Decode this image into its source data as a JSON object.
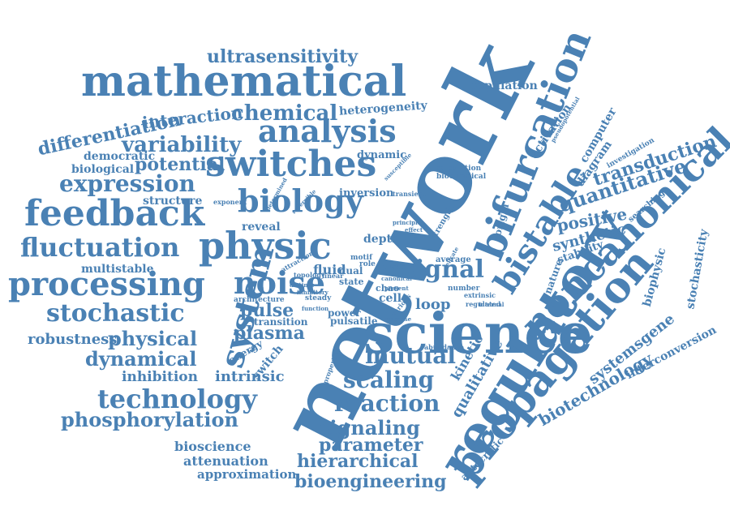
{
  "cloud": {
    "color": "#4a81b4",
    "words": [
      "network",
      "science",
      "regulatory",
      "propagation",
      "bifurcation",
      "bistable",
      "noncanonical",
      "mathematical",
      "switches",
      "physic",
      "feedback",
      "processing",
      "analysis",
      "biology",
      "fluctuation",
      "noise",
      "system",
      "stochastic",
      "signal",
      "expression",
      "variability",
      "chemical",
      "ultrasensitivity",
      "differentiation",
      "interaction",
      "potential",
      "technology",
      "reaction",
      "scaling",
      "mutual",
      "signaling",
      "parameter",
      "hierarchical",
      "bioengineering",
      "phosphorylation",
      "dynamical",
      "physical",
      "robustness",
      "inhibition",
      "intrinsic",
      "pulse",
      "plasma",
      "quantitative",
      "transduction",
      "positive",
      "synthetic",
      "biotechnology",
      "systemsgene",
      "qualitative",
      "kinetic",
      "interconversion",
      "stochasticity",
      "biophysic",
      "computer",
      "activation",
      "diagram",
      "population",
      "heterogeneity",
      "democratic",
      "biological",
      "structure",
      "multistable",
      "bioscience",
      "attenuation",
      "approximation",
      "autocratic",
      "dynamic",
      "inversion",
      "reveal",
      "depth",
      "loop",
      "cell",
      "chao",
      "power",
      "pulsatile",
      "state",
      "steady",
      "fluid",
      "dual",
      "energy",
      "switch",
      "transition",
      "architecture",
      "calculation",
      "biochemical",
      "origin",
      "nature",
      "stability",
      "searching",
      "investigation",
      "pseudopotential",
      "exponent",
      "topology",
      "linear",
      "motif",
      "role",
      "phase",
      "average",
      "strength",
      "number",
      "regulated",
      "extrinsic",
      "abundance",
      "properties",
      "transient",
      "susceptible",
      "determined",
      "reversible",
      "attraction",
      "distinct",
      "inhibitory",
      "function",
      "principle",
      "effect",
      "chain",
      "canonical",
      "present",
      "various",
      "response",
      "delicate",
      "internal"
    ]
  }
}
